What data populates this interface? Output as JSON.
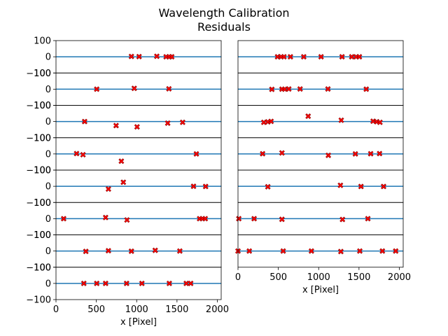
{
  "title_line1": "Wavelength Calibration",
  "title_line2": "Residuals",
  "colors": {
    "line": "#1f77b4",
    "marker": "#ff0000",
    "marker_edge": "#8b0000",
    "axes": "#000000"
  },
  "chart_data": {
    "type": "scatter",
    "marker": "X",
    "xlabel": "x [Pixel]",
    "xlim": [
      0,
      2048
    ],
    "x_ticks": [
      0,
      500,
      1000,
      1500,
      2000
    ],
    "x_tick_labels": [
      "0",
      "500",
      "1000",
      "1500",
      "2000"
    ],
    "ylim": [
      -100,
      100
    ],
    "y_ticks": [
      -100,
      0,
      100
    ],
    "y_tick_labels": [
      "−100",
      "0",
      "100"
    ],
    "panels": [
      {
        "column": "left",
        "rows": [
          {
            "x": [
              935,
              1030,
              1250,
              1365,
              1405,
              1435
            ],
            "y": [
              2,
              1,
              3,
              0,
              0,
              0
            ]
          },
          {
            "x": [
              505,
              970,
              1400
            ],
            "y": [
              0,
              5,
              2
            ]
          },
          {
            "x": [
              355,
              745,
              1005,
              1385,
              1570
            ],
            "y": [
              0,
              -25,
              -33,
              -10,
              -5
            ]
          },
          {
            "x": [
              255,
              335,
              810,
              1740
            ],
            "y": [
              2,
              -5,
              -45,
              0
            ]
          },
          {
            "x": [
              650,
              835,
              1705,
              1855
            ],
            "y": [
              -17,
              25,
              0,
              -1
            ]
          },
          {
            "x": [
              95,
              615,
              880,
              1780,
              1815,
              1850
            ],
            "y": [
              0,
              7,
              -8,
              0,
              0,
              0
            ]
          },
          {
            "x": [
              370,
              650,
              935,
              1230,
              1535
            ],
            "y": [
              -2,
              2,
              -1,
              4,
              0
            ]
          },
          {
            "x": [
              345,
              505,
              615,
              875,
              1065,
              1405,
              1615,
              1670
            ],
            "y": [
              0,
              0,
              0,
              0,
              0,
              0,
              0,
              0
            ]
          }
        ]
      },
      {
        "column": "right",
        "rows": [
          {
            "x": [
              490,
              535,
              570,
              650,
              815,
              1030,
              1290,
              1410,
              1465,
              1505
            ],
            "y": [
              0,
              0,
              0,
              0,
              0,
              0,
              0,
              0,
              0,
              0
            ]
          },
          {
            "x": [
              420,
              545,
              580,
              630,
              770,
              1115,
              1590
            ],
            "y": [
              -1,
              0,
              0,
              1,
              1,
              1,
              0
            ]
          },
          {
            "x": [
              320,
              370,
              410,
              870,
              1280,
              1675,
              1720,
              1760
            ],
            "y": [
              -5,
              -2,
              1,
              33,
              8,
              2,
              -1,
              -5
            ]
          },
          {
            "x": [
              305,
              545,
              1120,
              1455,
              1645,
              1755
            ],
            "y": [
              1,
              6,
              -9,
              0,
              1,
              2
            ]
          },
          {
            "x": [
              370,
              1270,
              1525,
              1805
            ],
            "y": [
              -3,
              6,
              -1,
              -1
            ]
          },
          {
            "x": [
              10,
              200,
              545,
              1295,
              1610
            ],
            "y": [
              0,
              0,
              -4,
              -5,
              0
            ]
          },
          {
            "x": [
              0,
              140,
              560,
              910,
              1275,
              1510,
              1790,
              1955
            ],
            "y": [
              0,
              0,
              0,
              0,
              -3,
              0,
              0,
              0
            ]
          }
        ]
      }
    ]
  }
}
